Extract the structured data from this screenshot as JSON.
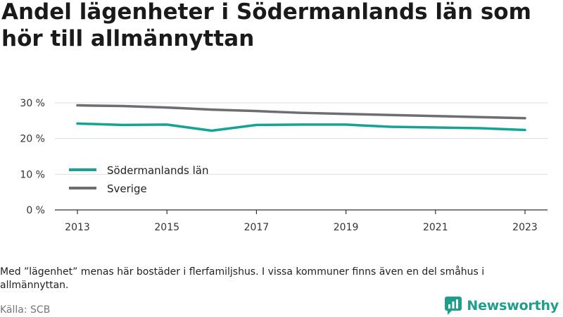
{
  "chart_data": {
    "type": "line",
    "title": "Andel lägenheter i Södermanlands län som hör till allmännyttan",
    "x": [
      2013,
      2014,
      2015,
      2016,
      2017,
      2018,
      2019,
      2020,
      2021,
      2022,
      2023
    ],
    "x_ticks": [
      "2013",
      "2015",
      "2017",
      "2019",
      "2021",
      "2023"
    ],
    "y_ticks": [
      "0 %",
      "10 %",
      "20 %",
      "30 %"
    ],
    "ylim": [
      0,
      30
    ],
    "grid": "horizontal",
    "legend_position": "left",
    "series": [
      {
        "name": "Södermanlands län",
        "color": "#16a394",
        "values": [
          24.2,
          23.8,
          23.9,
          22.2,
          23.8,
          23.9,
          23.9,
          23.3,
          23.1,
          22.9,
          22.4
        ]
      },
      {
        "name": "Sverige",
        "color": "#6e6e72",
        "values": [
          29.3,
          29.1,
          28.7,
          28.1,
          27.7,
          27.2,
          26.9,
          26.6,
          26.3,
          26.0,
          25.7
        ]
      }
    ]
  },
  "footer": {
    "note": "Med ”lägenhet” menas här bostäder i flerfamiljshus. I vissa kommuner finns även en del småhus i allmännyttan.",
    "source": "Källa: SCB",
    "brand": "Newsworthy",
    "brand_color": "#1f9e8c"
  }
}
